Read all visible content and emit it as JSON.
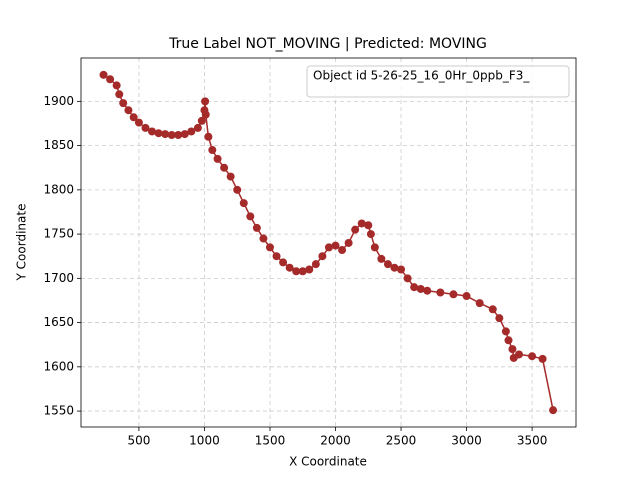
{
  "chart_data": {
    "type": "line",
    "title": "True Label NOT_MOVING | Predicted: MOVING",
    "x_label": "X Coordinate",
    "y_label": "Y Coordinate",
    "x": [
      230,
      280,
      330,
      350,
      380,
      420,
      460,
      500,
      550,
      600,
      650,
      700,
      750,
      800,
      850,
      900,
      950,
      980,
      1000,
      1005,
      1010,
      1030,
      1060,
      1100,
      1150,
      1200,
      1250,
      1300,
      1350,
      1400,
      1450,
      1500,
      1550,
      1600,
      1650,
      1700,
      1750,
      1800,
      1850,
      1900,
      1950,
      2000,
      2050,
      2100,
      2150,
      2200,
      2250,
      2270,
      2300,
      2350,
      2400,
      2450,
      2500,
      2550,
      2600,
      2650,
      2700,
      2800,
      2900,
      3000,
      3100,
      3200,
      3250,
      3300,
      3320,
      3350,
      3360,
      3400,
      3500,
      3580,
      3660
    ],
    "series": [
      {
        "name": "Object id 5-26-25_16_0Hr_0ppb_F3_",
        "color": "#a52a2a",
        "values": [
          1930,
          1925,
          1918,
          1908,
          1898,
          1890,
          1882,
          1876,
          1870,
          1866,
          1864,
          1863,
          1862,
          1862,
          1863,
          1866,
          1870,
          1878,
          1890,
          1900,
          1885,
          1860,
          1845,
          1835,
          1825,
          1815,
          1800,
          1785,
          1770,
          1757,
          1745,
          1735,
          1725,
          1718,
          1712,
          1708,
          1708,
          1710,
          1716,
          1725,
          1735,
          1737,
          1732,
          1740,
          1755,
          1762,
          1760,
          1750,
          1735,
          1722,
          1716,
          1712,
          1710,
          1700,
          1690,
          1688,
          1686,
          1684,
          1682,
          1680,
          1672,
          1665,
          1655,
          1640,
          1630,
          1620,
          1610,
          1614,
          1612,
          1609,
          1551
        ]
      }
    ],
    "xlim": [
      58,
      3835
    ],
    "ylim": [
      1532,
      1949
    ],
    "xticks": [
      500,
      1000,
      1500,
      2000,
      2500,
      3000,
      3500
    ],
    "yticks": [
      1550,
      1600,
      1650,
      1700,
      1750,
      1800,
      1850,
      1900
    ],
    "grid": true,
    "legend": "upper right"
  }
}
